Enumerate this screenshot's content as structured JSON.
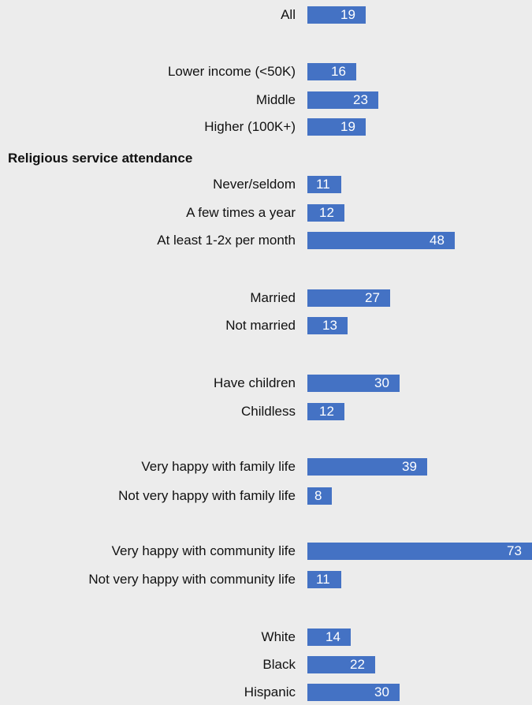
{
  "chart_data": {
    "type": "bar",
    "orientation": "horizontal",
    "title": "",
    "xlim": [
      0,
      73
    ],
    "bar_color": "#4472c4",
    "section_heading": "Religious service attendance",
    "categories": [
      "All",
      "Lower income (<50K)",
      "Middle",
      "Higher (100K+)",
      "Never/seldom",
      "A few times a year",
      "At least 1-2x per month",
      "Married",
      "Not married",
      "Have children",
      "Childless",
      "Very happy with family life",
      "Not very happy with family life",
      "Very happy with community life",
      "Not very happy with community life",
      "White",
      "Black",
      "Hispanic"
    ],
    "values": [
      19,
      16,
      23,
      19,
      11,
      12,
      48,
      27,
      13,
      30,
      12,
      39,
      8,
      73,
      11,
      14,
      22,
      30
    ]
  }
}
